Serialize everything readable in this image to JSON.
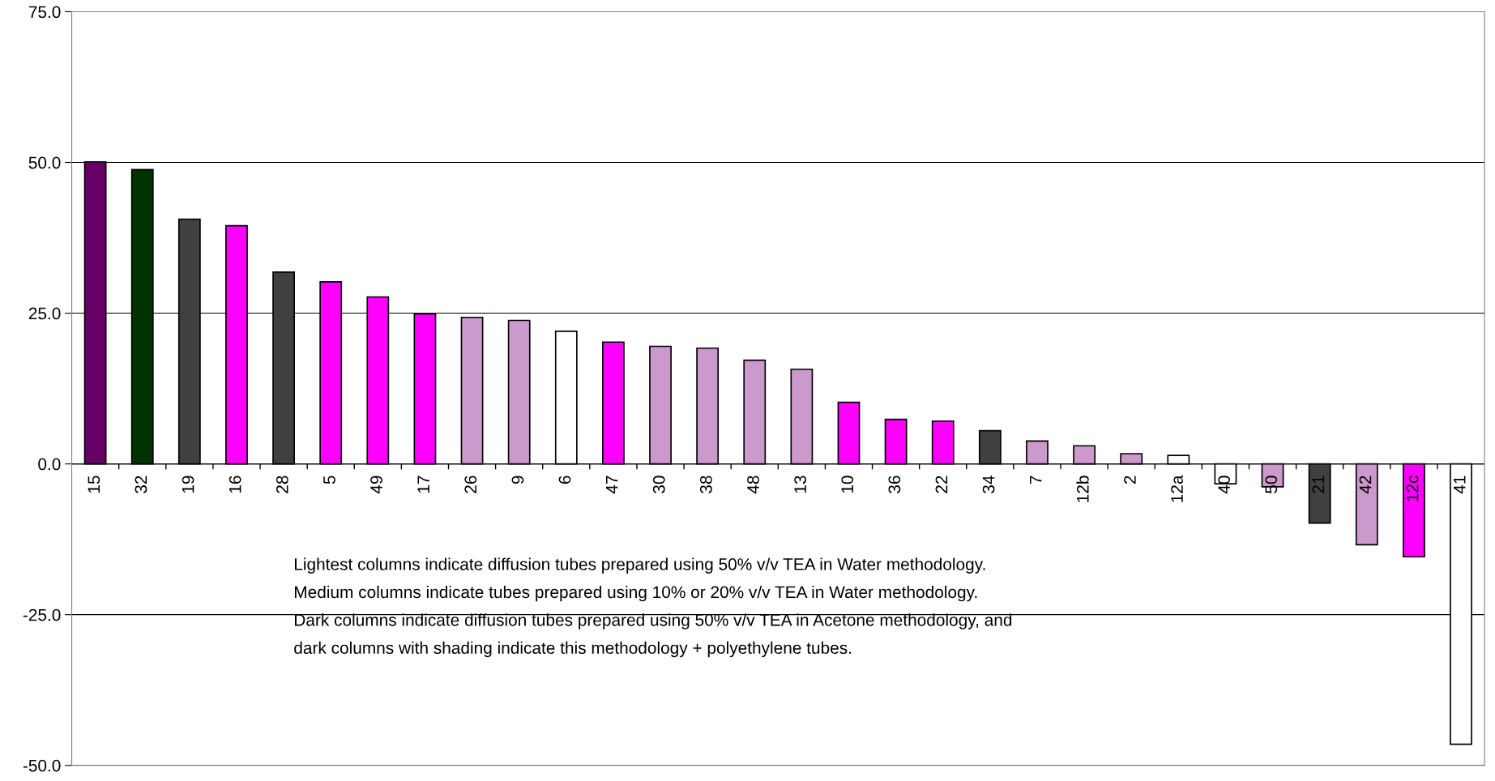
{
  "chart_data": {
    "type": "bar",
    "categories": [
      "15",
      "32",
      "19",
      "16",
      "28",
      "5",
      "49",
      "17",
      "26",
      "9",
      "6",
      "47",
      "30",
      "38",
      "48",
      "13",
      "10",
      "36",
      "22",
      "34",
      "7",
      "12b",
      "2",
      "12a",
      "40",
      "50",
      "21",
      "42",
      "12c",
      "41"
    ],
    "values": [
      50.1,
      48.8,
      40.6,
      39.5,
      31.8,
      30.2,
      27.7,
      24.9,
      24.3,
      23.8,
      22.0,
      20.2,
      19.5,
      19.2,
      17.2,
      15.7,
      10.2,
      7.4,
      7.1,
      5.5,
      3.8,
      3.0,
      1.7,
      1.4,
      -3.3,
      -3.8,
      -9.8,
      -13.4,
      -15.4,
      -46.5
    ],
    "colors": [
      "#660066",
      "#003300",
      "#404040",
      "#ff00ff",
      "#404040",
      "#ff00ff",
      "#ff00ff",
      "#ff00ff",
      "#cc99cc",
      "#cc99cc",
      "#ffffff",
      "#ff00ff",
      "#cc99cc",
      "#cc99cc",
      "#cc99cc",
      "#cc99cc",
      "#ff00ff",
      "#ff00ff",
      "#ff00ff",
      "#404040",
      "#cc99cc",
      "#cc99cc",
      "#cc99cc",
      "#ffffff",
      "#ffffff",
      "#cc99cc",
      "#404040",
      "#cc99cc",
      "#ff00ff",
      "#ffffff"
    ],
    "ylim": [
      -50,
      75
    ],
    "yticks": [
      {
        "value": -50,
        "label": "-50.0"
      },
      {
        "value": -25,
        "label": "-25.0"
      },
      {
        "value": 0,
        "label": "0.0"
      },
      {
        "value": 25,
        "label": "25.0"
      },
      {
        "value": 50,
        "label": "50.0"
      },
      {
        "value": 75,
        "label": "75.0"
      }
    ],
    "grid": "y",
    "annotations": [
      "Lightest columns indicate diffusion tubes prepared using 50% v/v TEA in Water methodology.",
      "Medium columns indicate tubes prepared using 10% or 20% v/v TEA in Water methodology.",
      "Dark columns indicate diffusion tubes prepared using 50% v/v TEA in Acetone methodology, and",
      "dark columns with shading indicate this methodology + polyethylene tubes."
    ]
  }
}
